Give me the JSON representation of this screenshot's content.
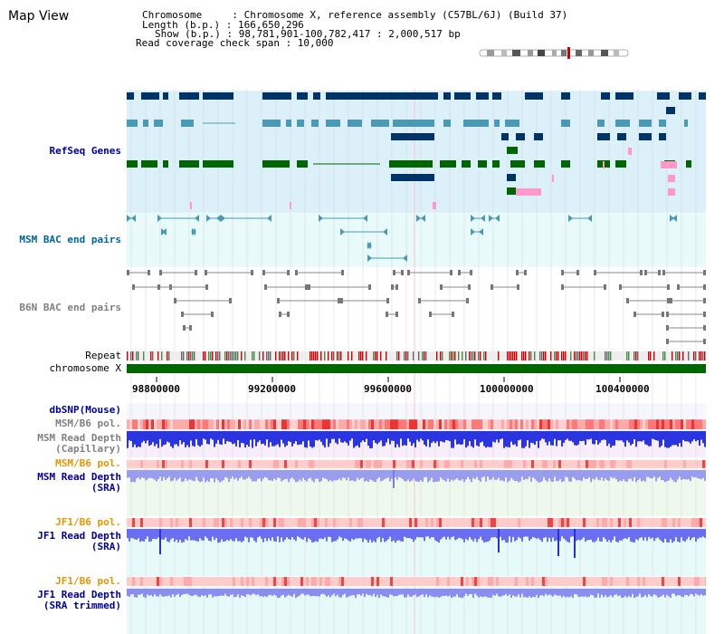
{
  "page": {
    "title": "Map View",
    "info": {
      "chromosome_line": "Chromosome     : Chromosome X, reference assembly (C57BL/6J) (Build 37)",
      "length_line": "Length (b.p.) : 166,650,296",
      "show_line": "Show (b.p.) : 98,781,901-100,782,417 : 2,000,517 bp",
      "coverage_line": "Read coverage check span : 10,000"
    }
  },
  "tracks": {
    "refseq": "RefSeq Genes",
    "msm_bac": "MSM BAC end pairs",
    "b6n_bac": "B6N BAC end pairs",
    "repeat": "Repeat",
    "chromosome": "chromosome X",
    "dbsnp": "dbSNP(Mouse)",
    "msm_b6_pol_1": "MSM/B6 pol.",
    "msm_depth_cap_1": "MSM Read Depth",
    "msm_depth_cap_2": "(Capillary)",
    "msm_b6_pol_2": "MSM/B6 pol.",
    "msm_depth_sra_1": "MSM Read Depth",
    "msm_depth_sra_2": "(SRA)",
    "jf1_b6_pol_1": "JF1/B6 pol.",
    "jf1_depth_sra_1": "JF1 Read Depth",
    "jf1_depth_sra_2": "(SRA)",
    "jf1_b6_pol_2": "JF1/B6 pol.",
    "jf1_depth_trim_1": "JF1 Read Depth",
    "jf1_depth_trim_2": "(SRA trimmed)"
  },
  "axis": {
    "ticks": [
      "98800000",
      "99200000",
      "99600000",
      "100000000",
      "100400000"
    ]
  },
  "colors": {
    "navy_label": "#000099",
    "teal_label": "#006699",
    "orange_label": "#e69500",
    "gray_label": "#808080",
    "refseq_bg": "#dcf0fa",
    "bac_bg": "#e8fafa",
    "gene_navy": "#003366",
    "gene_teal": "#4a9ab5",
    "gene_green": "#006600",
    "gene_pink": "#ff99cc",
    "chrom_green": "#006600"
  }
}
